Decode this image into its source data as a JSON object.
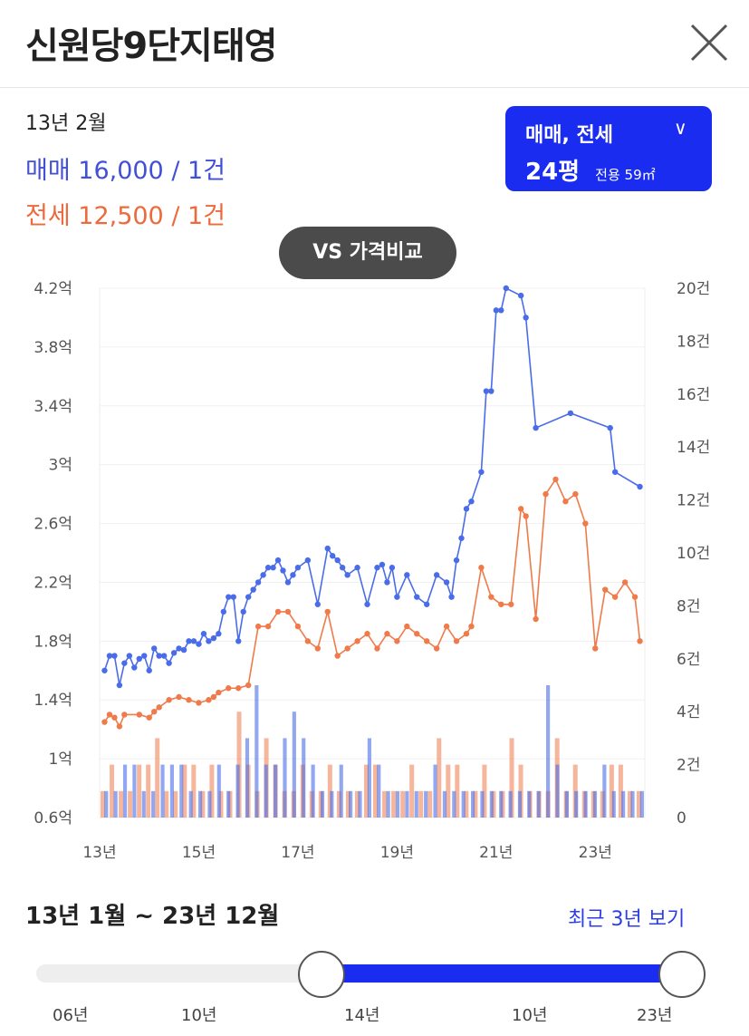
{
  "header": {
    "title": "신원당9단지태영",
    "close_icon": "close-x-icon"
  },
  "summary": {
    "date": "13년 2월",
    "sale": "매매 16,000 / 1건",
    "rent": "전세 12,500 / 1건"
  },
  "type_selector": {
    "line1": "매매, 전세",
    "chevron_icon": "chevron-down-icon",
    "pyeong": "24평",
    "area": "전용 59㎡"
  },
  "vs_button": "VS 가격비교",
  "colors": {
    "sale": "#4a6ce8",
    "rent": "#ef7a4a",
    "accent": "#1a2cf0"
  },
  "chart_data": {
    "type": "line",
    "x_ticks": [
      "13년",
      "15년",
      "17년",
      "19년",
      "21년",
      "23년"
    ],
    "y_left_ticks": [
      "0.6억",
      "1억",
      "1.4억",
      "1.8억",
      "2.2억",
      "2.6억",
      "3억",
      "3.4억",
      "3.8억",
      "4.2억"
    ],
    "y_right_ticks": [
      "0",
      "2건",
      "4건",
      "6건",
      "8건",
      "10건",
      "12건",
      "14건",
      "16건",
      "18건",
      "20건"
    ],
    "ylim_left": [
      0.6,
      4.2
    ],
    "ylim_right": [
      0,
      20
    ],
    "xlim": [
      2013.0,
      2024.0
    ],
    "grid": true,
    "series": [
      {
        "name": "매매",
        "color": "#4a6ce8",
        "x": [
          2013.1,
          2013.2,
          2013.3,
          2013.4,
          2013.5,
          2013.6,
          2013.7,
          2013.8,
          2013.9,
          2014.0,
          2014.1,
          2014.2,
          2014.3,
          2014.4,
          2014.5,
          2014.6,
          2014.7,
          2014.8,
          2014.9,
          2015.0,
          2015.1,
          2015.2,
          2015.3,
          2015.4,
          2015.5,
          2015.6,
          2015.7,
          2015.8,
          2015.9,
          2016.0,
          2016.1,
          2016.2,
          2016.3,
          2016.4,
          2016.5,
          2016.6,
          2016.7,
          2016.8,
          2016.9,
          2017.0,
          2017.2,
          2017.4,
          2017.6,
          2017.7,
          2017.8,
          2017.9,
          2018.0,
          2018.2,
          2018.4,
          2018.6,
          2018.7,
          2018.8,
          2018.9,
          2019.0,
          2019.2,
          2019.4,
          2019.6,
          2019.8,
          2020.0,
          2020.1,
          2020.2,
          2020.3,
          2020.4,
          2020.5,
          2020.7,
          2020.8,
          2020.9,
          2021.0,
          2021.1,
          2021.2,
          2021.5,
          2021.6,
          2021.8,
          2022.5,
          2023.3,
          2023.4,
          2023.9
        ],
        "values": [
          1.6,
          1.7,
          1.7,
          1.5,
          1.65,
          1.7,
          1.62,
          1.68,
          1.7,
          1.6,
          1.75,
          1.7,
          1.7,
          1.65,
          1.72,
          1.75,
          1.74,
          1.8,
          1.8,
          1.78,
          1.85,
          1.8,
          1.82,
          1.85,
          2.0,
          2.1,
          2.1,
          1.8,
          2.0,
          2.1,
          2.15,
          2.2,
          2.25,
          2.3,
          2.3,
          2.35,
          2.28,
          2.2,
          2.25,
          2.3,
          2.35,
          2.05,
          2.43,
          2.38,
          2.35,
          2.3,
          2.25,
          2.3,
          2.05,
          2.3,
          2.32,
          2.2,
          2.3,
          2.1,
          2.25,
          2.1,
          2.05,
          2.25,
          2.2,
          2.1,
          2.35,
          2.5,
          2.7,
          2.75,
          2.95,
          3.5,
          3.5,
          4.05,
          4.05,
          4.2,
          4.15,
          4.0,
          3.25,
          3.35,
          3.25,
          2.95,
          2.85
        ]
      },
      {
        "name": "전세",
        "color": "#ef7a4a",
        "x": [
          2013.1,
          2013.2,
          2013.3,
          2013.4,
          2013.5,
          2013.8,
          2014.0,
          2014.1,
          2014.2,
          2014.4,
          2014.6,
          2014.8,
          2015.0,
          2015.2,
          2015.3,
          2015.4,
          2015.6,
          2015.8,
          2016.0,
          2016.2,
          2016.4,
          2016.6,
          2016.8,
          2017.0,
          2017.2,
          2017.4,
          2017.6,
          2017.8,
          2018.0,
          2018.2,
          2018.4,
          2018.6,
          2018.8,
          2019.0,
          2019.2,
          2019.4,
          2019.6,
          2019.8,
          2020.0,
          2020.2,
          2020.4,
          2020.5,
          2020.7,
          2020.9,
          2021.1,
          2021.3,
          2021.5,
          2021.6,
          2021.8,
          2022.0,
          2022.2,
          2022.4,
          2022.6,
          2022.8,
          2023.0,
          2023.2,
          2023.4,
          2023.6,
          2023.8,
          2023.9
        ],
        "values": [
          1.25,
          1.3,
          1.28,
          1.22,
          1.3,
          1.3,
          1.28,
          1.32,
          1.35,
          1.4,
          1.42,
          1.4,
          1.38,
          1.4,
          1.42,
          1.45,
          1.48,
          1.48,
          1.5,
          1.9,
          1.9,
          2.0,
          2.0,
          1.9,
          1.8,
          1.75,
          2.0,
          1.7,
          1.75,
          1.8,
          1.85,
          1.75,
          1.85,
          1.8,
          1.9,
          1.85,
          1.8,
          1.75,
          1.9,
          1.8,
          1.85,
          1.9,
          2.3,
          2.1,
          2.05,
          2.05,
          2.7,
          2.65,
          1.95,
          2.8,
          2.9,
          2.75,
          2.8,
          2.6,
          1.75,
          2.15,
          2.1,
          2.2,
          2.1,
          1.8
        ]
      }
    ],
    "bars_sale": [
      1,
      1,
      2,
      2,
      1,
      1,
      2,
      2,
      2,
      1,
      1,
      1,
      2,
      1,
      2,
      3,
      5,
      2,
      2,
      3,
      4,
      3,
      2,
      1,
      1,
      2,
      1,
      1,
      3,
      2,
      1,
      1,
      1,
      1,
      1,
      2,
      1,
      1,
      1,
      1,
      1,
      1,
      1,
      1,
      1,
      1,
      1,
      5,
      2,
      1,
      1,
      1,
      1,
      2,
      1,
      1,
      1,
      1
    ],
    "bars_rent": [
      1,
      2,
      1,
      1,
      2,
      2,
      3,
      1,
      1,
      2,
      2,
      1,
      2,
      1,
      1,
      4,
      2,
      1,
      3,
      2,
      1,
      1,
      2,
      1,
      1,
      2,
      1,
      1,
      1,
      2,
      2,
      1,
      1,
      1,
      2,
      1,
      1,
      3,
      2,
      2,
      1,
      1,
      2,
      1,
      1,
      3,
      2,
      1,
      1,
      1,
      3,
      1,
      2,
      1,
      1,
      1,
      2,
      2,
      1,
      1
    ]
  },
  "range": {
    "label": "13년 1월 ~ 23년 12월",
    "recent_link": "최근 3년 보기"
  },
  "slider": {
    "ticks": [
      "06년",
      "10년",
      "14년",
      "10년",
      "23년"
    ],
    "start_fraction": 0.44,
    "end_fraction": 1.0
  }
}
